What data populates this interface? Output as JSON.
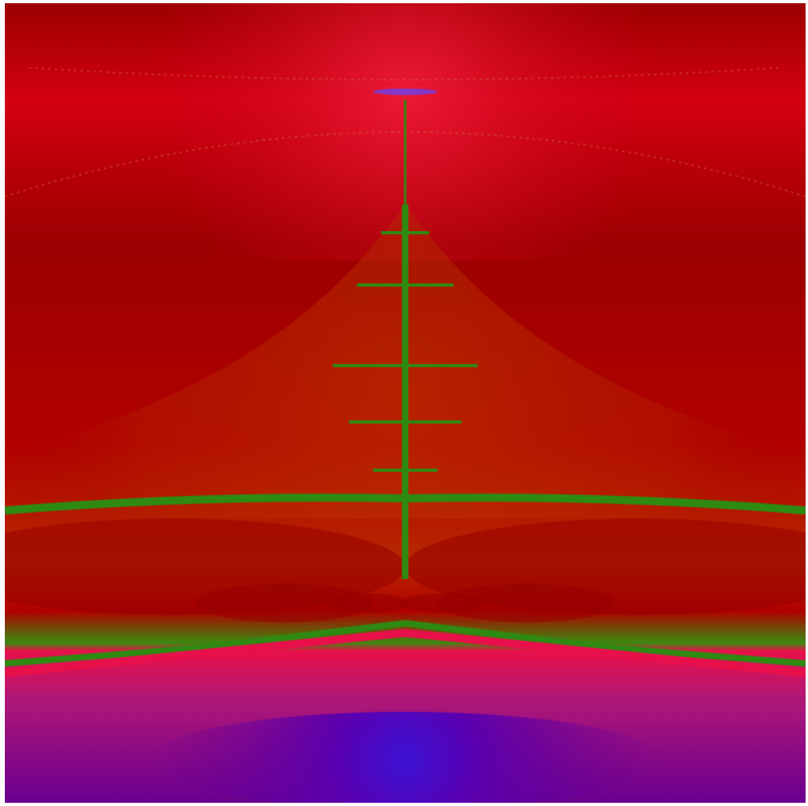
{
  "image": {
    "kind": "fractal-render",
    "symmetry": "mirror-vertical-axis",
    "palette": {
      "deep_red": "#9c0000",
      "red": "#b20000",
      "crimson": "#d40012",
      "rust": "#b82a00",
      "orange_red": "#b83000",
      "olive_green": "#3c8a10",
      "green": "#2f8a12",
      "pink_edge": "#e8104a",
      "magenta": "#b01878",
      "purple": "#6a0090",
      "violet": "#5a00b0",
      "blue_core": "#4010d0"
    }
  }
}
